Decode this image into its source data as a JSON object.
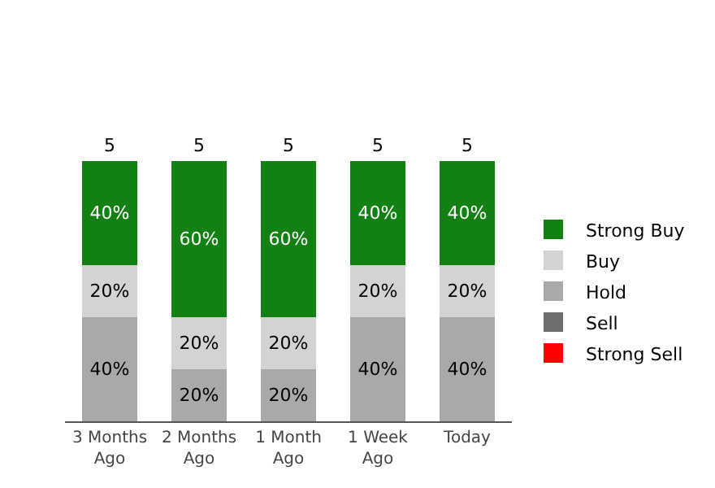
{
  "chart_data": {
    "type": "bar",
    "stacked": true,
    "categories": [
      "3 Months Ago",
      "2 Months Ago",
      "1 Month Ago",
      "1 Week Ago",
      "Today"
    ],
    "series": [
      {
        "name": "Strong Sell",
        "color": "#ff0000",
        "values": [
          0,
          0,
          0,
          0,
          0
        ],
        "value_labels": [
          null,
          null,
          null,
          null,
          null
        ]
      },
      {
        "name": "Sell",
        "color": "#6e6e6e",
        "values": [
          0,
          0,
          0,
          0,
          0
        ],
        "value_labels": [
          null,
          null,
          null,
          null,
          null
        ]
      },
      {
        "name": "Hold",
        "color": "#a9a9a9",
        "values": [
          40,
          20,
          20,
          40,
          40
        ],
        "value_labels": [
          "40%",
          "20%",
          "20%",
          "40%",
          "40%"
        ]
      },
      {
        "name": "Buy",
        "color": "#d3d3d3",
        "values": [
          20,
          20,
          20,
          20,
          20
        ],
        "value_labels": [
          "20%",
          "20%",
          "20%",
          "20%",
          "20%"
        ]
      },
      {
        "name": "Strong Buy",
        "color": "#138013",
        "values": [
          40,
          60,
          60,
          40,
          40
        ],
        "value_labels": [
          "40%",
          "60%",
          "60%",
          "40%",
          "40%"
        ]
      }
    ],
    "annotations": [
      {
        "text": "5",
        "x": "3 Months Ago",
        "y": 100
      },
      {
        "text": "5",
        "x": "2 Months Ago",
        "y": 100
      },
      {
        "text": "5",
        "x": "1 Month Ago",
        "y": 100
      },
      {
        "text": "5",
        "x": "1 Week Ago",
        "y": 100
      },
      {
        "text": "5",
        "x": "Today",
        "y": 100
      }
    ],
    "legend": "right"
  }
}
